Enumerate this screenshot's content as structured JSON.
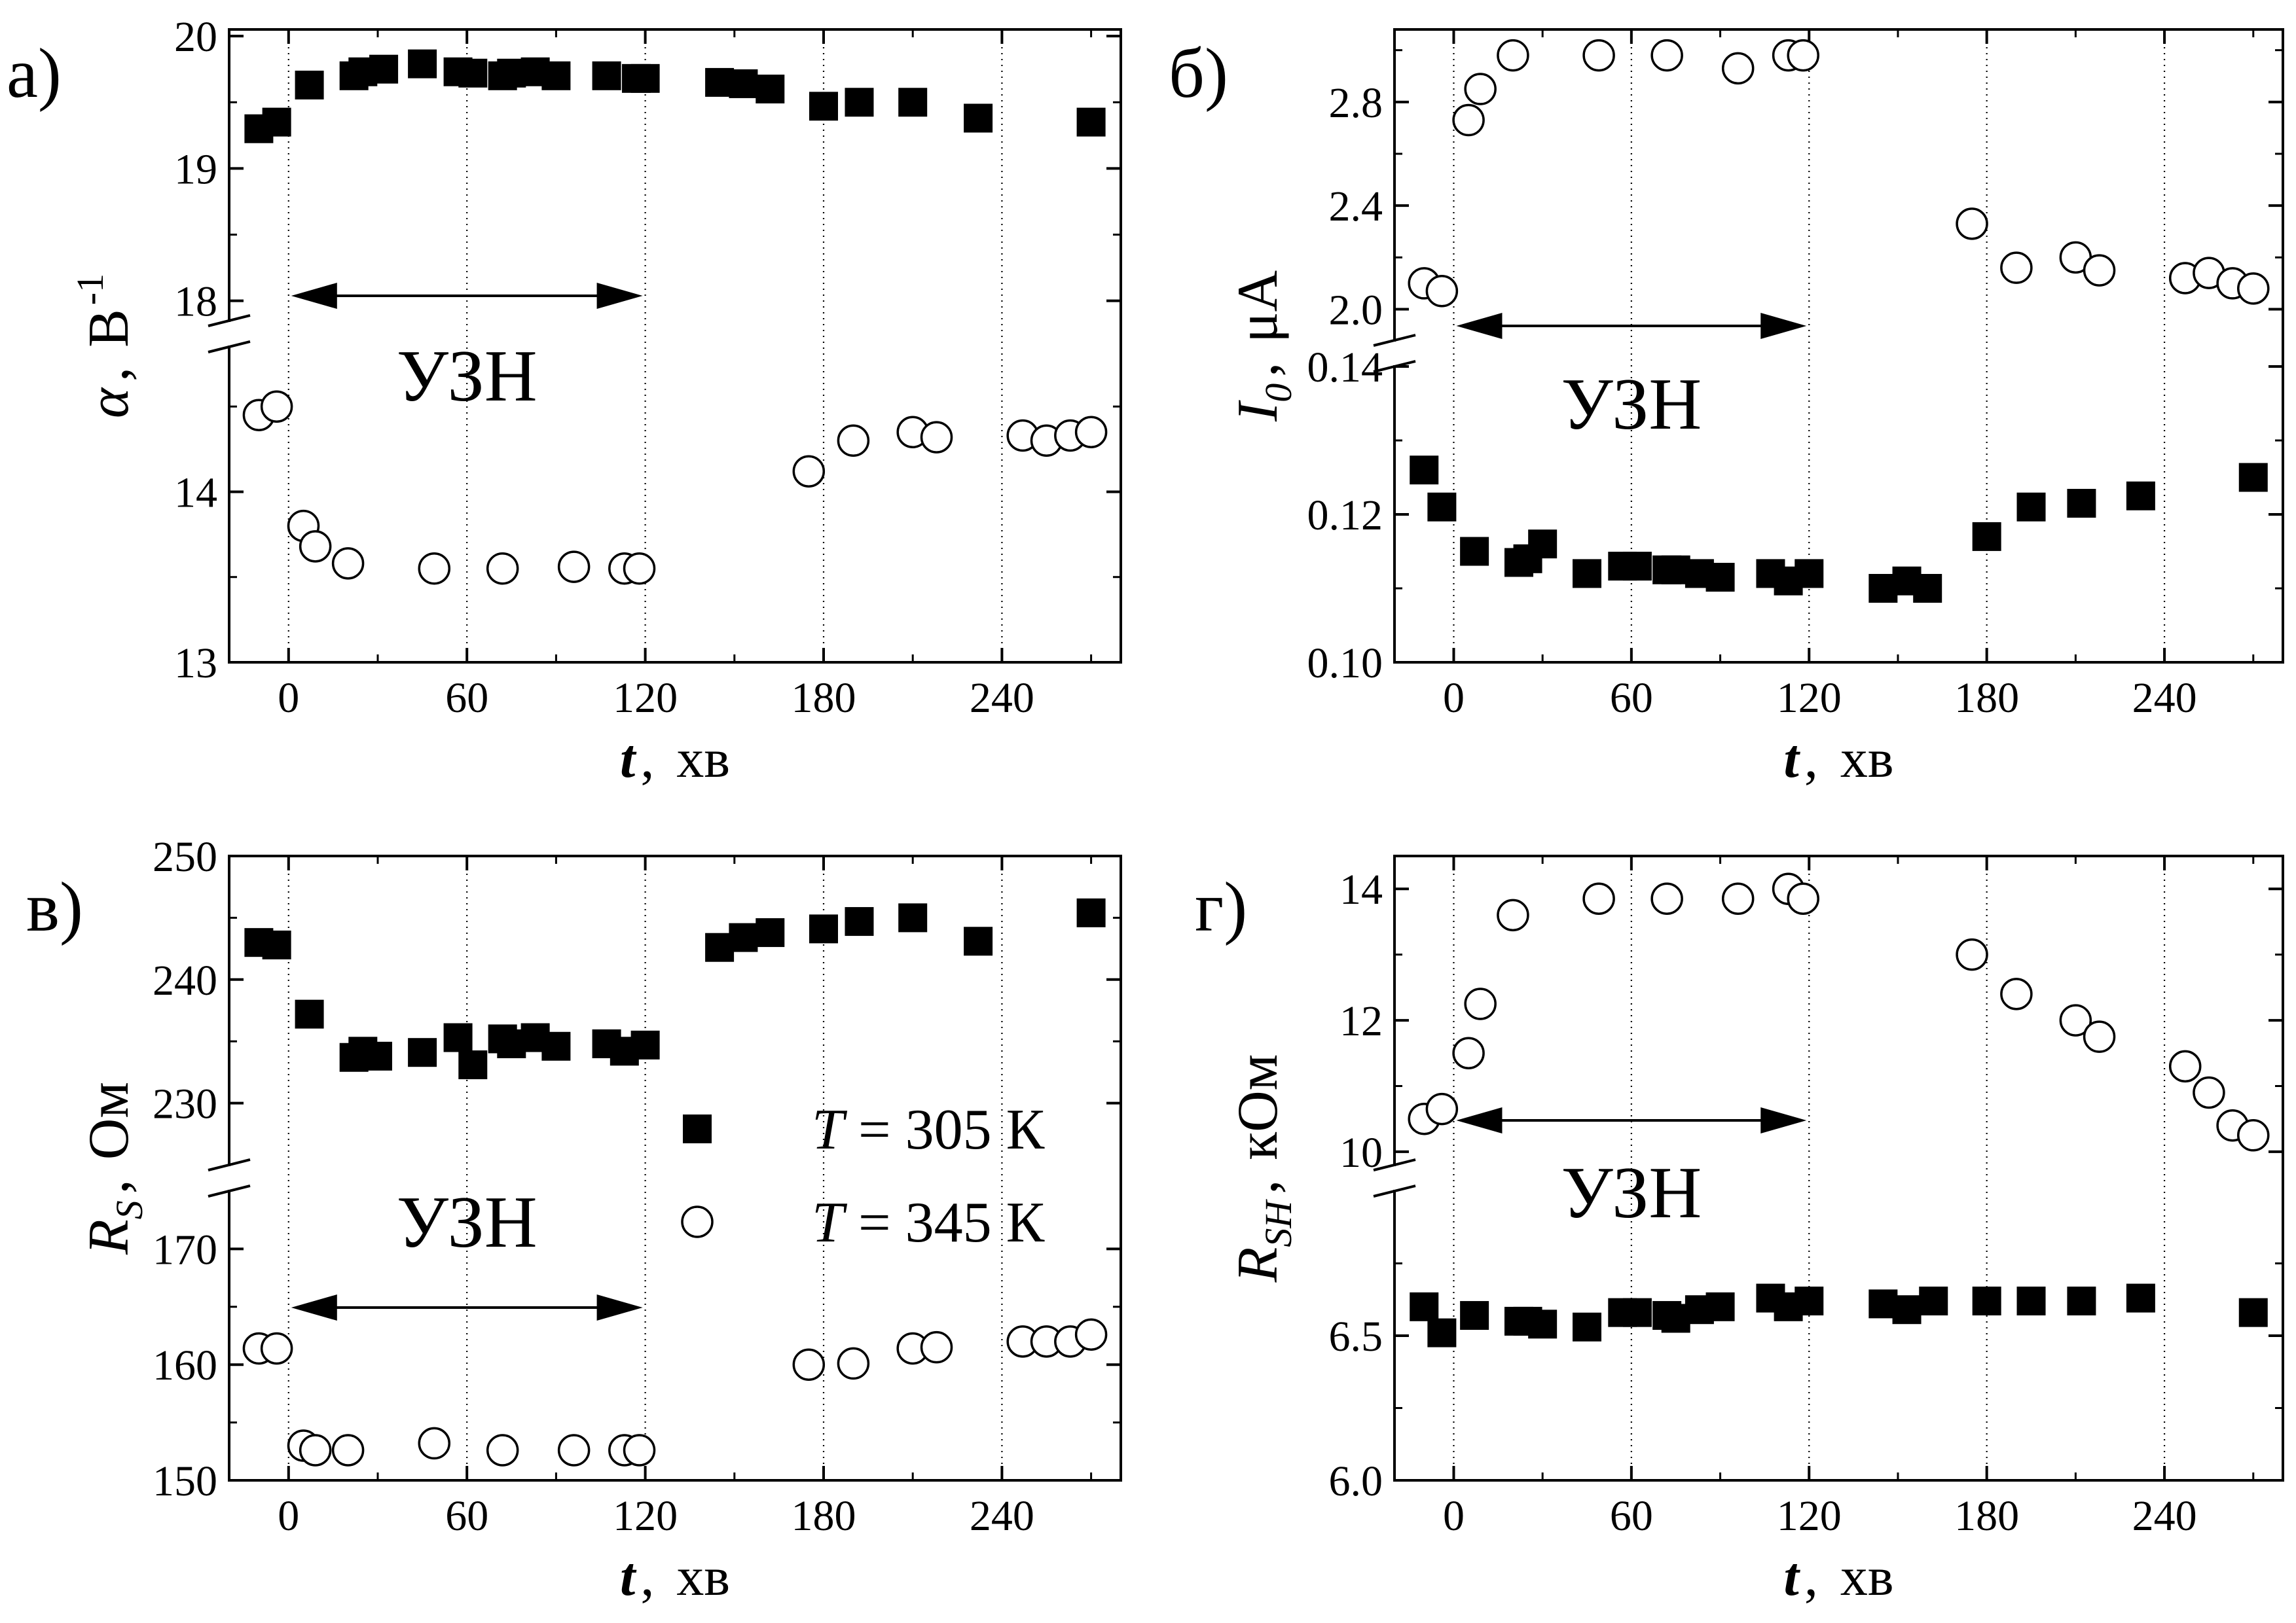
{
  "chart_data": [
    {
      "panel_label": "а)",
      "type": "scatter",
      "xlabel": {
        "var": "t",
        "sep": ",",
        "unit": "хв"
      },
      "ylabel": {
        "var": "α",
        "sep": ",",
        "unit": "В",
        "sup": "-1"
      },
      "xlim": [
        -20,
        280
      ],
      "xticks": [
        0,
        60,
        120,
        180,
        240
      ],
      "guides_x": [
        0,
        60,
        120,
        180,
        240
      ],
      "broken_y": true,
      "upper": {
        "ylim": [
          17.85,
          20.05
        ],
        "ticks": [
          18,
          19,
          20
        ],
        "tick_labels": [
          "18",
          "19",
          "20"
        ]
      },
      "lower": {
        "ylim": [
          13,
          14.85
        ],
        "ticks": [
          13,
          14
        ],
        "tick_labels": [
          "13",
          "14"
        ]
      },
      "annotation": {
        "text": "УЗН",
        "x_from": 0,
        "x_to": 120
      },
      "series": [
        {
          "marker": "square-filled",
          "axis": "upper",
          "x": [
            -10,
            -4,
            7,
            22,
            25,
            32,
            45,
            57,
            62,
            72,
            75,
            83,
            90,
            107,
            117,
            120,
            145,
            153,
            162,
            180,
            192,
            210,
            232,
            270
          ],
          "y": [
            19.3,
            19.35,
            19.63,
            19.7,
            19.73,
            19.75,
            19.79,
            19.73,
            19.72,
            19.7,
            19.72,
            19.73,
            19.7,
            19.7,
            19.68,
            19.68,
            19.65,
            19.64,
            19.6,
            19.47,
            19.5,
            19.5,
            19.38,
            19.35
          ]
        },
        {
          "marker": "circle-open",
          "axis": "lower",
          "x": [
            -10,
            -4,
            5,
            9,
            20,
            49,
            72,
            96,
            113,
            118,
            175,
            190,
            210,
            218,
            247,
            255,
            263,
            270
          ],
          "y": [
            14.45,
            14.5,
            13.8,
            13.68,
            13.58,
            13.55,
            13.55,
            13.56,
            13.55,
            13.55,
            14.12,
            14.3,
            14.35,
            14.32,
            14.33,
            14.3,
            14.33,
            14.35
          ]
        }
      ]
    },
    {
      "panel_label": "б)",
      "type": "scatter",
      "xlabel": {
        "var": "t",
        "sep": ",",
        "unit": "хв"
      },
      "ylabel": {
        "var": "I",
        "sub": "0",
        "sep": ",",
        "unit": "μА"
      },
      "xlim": [
        -20,
        280
      ],
      "xticks": [
        0,
        60,
        120,
        180,
        240
      ],
      "guides_x": [
        0,
        60,
        120,
        180,
        240
      ],
      "broken_y": true,
      "upper": {
        "ylim": [
          1.88,
          3.08
        ],
        "ticks": [
          2.0,
          2.4,
          2.8
        ],
        "tick_labels": [
          "2.0",
          "2.4",
          "2.8"
        ]
      },
      "lower": {
        "ylim": [
          0.1,
          0.14
        ],
        "ticks": [
          0.1,
          0.12,
          0.14
        ],
        "tick_labels": [
          "0.10",
          "0.12",
          "0.14"
        ]
      },
      "annotation": {
        "text": "УЗН",
        "x_from": 0,
        "x_to": 120
      },
      "series": [
        {
          "marker": "square-filled",
          "axis": "lower",
          "x": [
            -10,
            -4,
            7,
            22,
            25,
            30,
            45,
            57,
            62,
            72,
            75,
            83,
            90,
            107,
            113,
            120,
            145,
            153,
            160,
            180,
            195,
            212,
            232,
            270
          ],
          "y": [
            0.126,
            0.121,
            0.115,
            0.1135,
            0.114,
            0.116,
            0.112,
            0.113,
            0.113,
            0.1125,
            0.1125,
            0.112,
            0.1115,
            0.112,
            0.111,
            0.112,
            0.11,
            0.111,
            0.11,
            0.117,
            0.121,
            0.1215,
            0.1225,
            0.125
          ]
        },
        {
          "marker": "circle-open",
          "axis": "upper",
          "x": [
            -10,
            -4,
            5,
            9,
            20,
            49,
            72,
            96,
            113,
            118,
            175,
            190,
            210,
            218,
            247,
            255,
            263,
            270
          ],
          "y": [
            2.1,
            2.07,
            2.73,
            2.85,
            2.98,
            2.98,
            2.98,
            2.93,
            2.98,
            2.98,
            2.33,
            2.16,
            2.2,
            2.15,
            2.12,
            2.14,
            2.1,
            2.08
          ]
        }
      ]
    },
    {
      "panel_label": "в)",
      "type": "scatter",
      "xlabel": {
        "var": "t",
        "sep": ",",
        "unit": "хв"
      },
      "ylabel": {
        "var": "R",
        "sub": "S",
        "sep": ",",
        "unit": "Ом"
      },
      "xlim": [
        -20,
        280
      ],
      "xticks": [
        0,
        60,
        120,
        180,
        240
      ],
      "guides_x": [
        0,
        60,
        120,
        180,
        240
      ],
      "broken_y": true,
      "upper": {
        "ylim": [
          225,
          250
        ],
        "ticks": [
          230,
          240,
          250
        ],
        "tick_labels": [
          "230",
          "240",
          "250"
        ]
      },
      "lower": {
        "ylim": [
          150,
          175
        ],
        "ticks": [
          150,
          160,
          170
        ],
        "tick_labels": [
          "150",
          "160",
          "170"
        ]
      },
      "annotation": {
        "text": "УЗН",
        "x_from": 0,
        "x_to": 120
      },
      "legend": {
        "position": "right-middle",
        "entries": [
          {
            "marker": "square-filled",
            "var": "T",
            "text": " = 305 К"
          },
          {
            "marker": "circle-open",
            "var": "T",
            "text": " = 345 К"
          }
        ]
      },
      "series": [
        {
          "marker": "square-filled",
          "axis": "upper",
          "x": [
            -10,
            -4,
            7,
            22,
            25,
            30,
            45,
            57,
            62,
            72,
            75,
            83,
            90,
            107,
            113,
            120,
            145,
            153,
            162,
            180,
            192,
            210,
            232,
            270
          ],
          "y": [
            243,
            242.8,
            237.2,
            233.7,
            234.2,
            233.8,
            234.1,
            235.3,
            233.1,
            235.2,
            234.8,
            235.3,
            234.6,
            234.8,
            234.2,
            234.7,
            242.6,
            243.4,
            243.8,
            244.1,
            244.7,
            245,
            243.1,
            245.4
          ]
        },
        {
          "marker": "circle-open",
          "axis": "lower",
          "x": [
            -10,
            -4,
            5,
            9,
            20,
            49,
            72,
            96,
            113,
            118,
            175,
            190,
            210,
            218,
            247,
            255,
            263,
            270
          ],
          "y": [
            161.4,
            161.4,
            153,
            152.6,
            152.6,
            153.2,
            152.6,
            152.6,
            152.6,
            152.6,
            160,
            160.1,
            161.4,
            161.5,
            162,
            162,
            162,
            162.6
          ]
        }
      ]
    },
    {
      "panel_label": "г)",
      "type": "scatter",
      "xlabel": {
        "var": "t",
        "sep": ",",
        "unit": "хв"
      },
      "ylabel": {
        "var": "R",
        "sub": "SH",
        "sep": ",",
        "unit": "кОм"
      },
      "xlim": [
        -20,
        280
      ],
      "xticks": [
        0,
        60,
        120,
        180,
        240
      ],
      "guides_x": [
        0,
        60,
        120,
        180,
        240
      ],
      "broken_y": true,
      "upper": {
        "ylim": [
          9.8,
          14.5
        ],
        "ticks": [
          10,
          12,
          14
        ],
        "tick_labels": [
          "10",
          "12",
          "14"
        ]
      },
      "lower": {
        "ylim": [
          6.0,
          7.0
        ],
        "ticks": [
          6.0,
          6.5
        ],
        "tick_labels": [
          "6.0",
          "6.5"
        ]
      },
      "annotation": {
        "text": "УЗН",
        "x_from": 0,
        "x_to": 120
      },
      "series": [
        {
          "marker": "square-filled",
          "axis": "lower",
          "x": [
            -10,
            -4,
            7,
            22,
            25,
            30,
            45,
            57,
            62,
            72,
            75,
            83,
            90,
            107,
            113,
            120,
            145,
            153,
            162,
            180,
            195,
            212,
            232,
            270
          ],
          "y": [
            6.6,
            6.51,
            6.57,
            6.55,
            6.55,
            6.54,
            6.53,
            6.58,
            6.58,
            6.57,
            6.56,
            6.59,
            6.6,
            6.63,
            6.6,
            6.62,
            6.61,
            6.59,
            6.62,
            6.62,
            6.62,
            6.62,
            6.63,
            6.58
          ]
        },
        {
          "marker": "circle-open",
          "axis": "upper",
          "x": [
            -10,
            -4,
            5,
            9,
            20,
            49,
            72,
            96,
            113,
            118,
            175,
            190,
            210,
            218,
            247,
            255,
            263,
            270
          ],
          "y": [
            10.5,
            10.65,
            11.5,
            12.25,
            13.6,
            13.85,
            13.85,
            13.85,
            14,
            13.85,
            13,
            12.4,
            12,
            11.75,
            11.3,
            10.9,
            10.4,
            10.25
          ]
        }
      ]
    }
  ]
}
